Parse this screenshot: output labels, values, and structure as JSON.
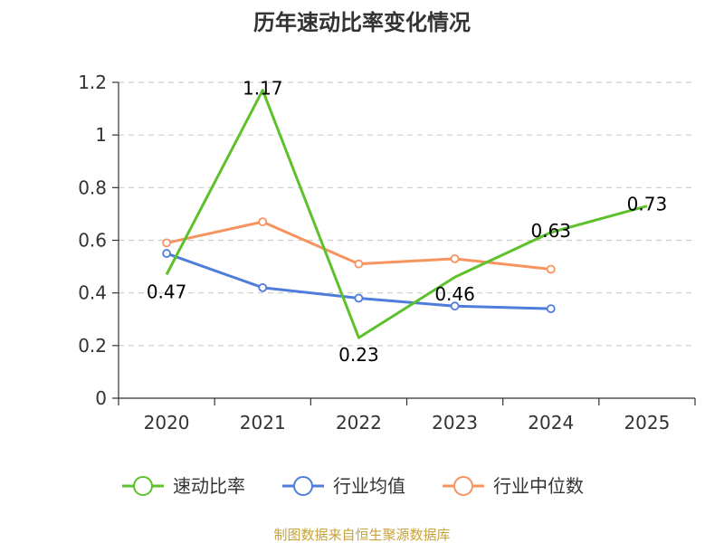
{
  "chart_data": {
    "type": "line",
    "title": "历年速动比率变化情况",
    "categories": [
      "2020",
      "2021",
      "2022",
      "2023",
      "2024",
      "2025"
    ],
    "ylim": [
      0,
      1.2
    ],
    "yticks": [
      "0",
      "0.2",
      "0.4",
      "0.6",
      "0.8",
      "1",
      "1.2"
    ],
    "grid": true,
    "legend_position": "bottom",
    "series": [
      {
        "name": "速动比率",
        "color": "#5cc12b",
        "values": [
          0.47,
          1.17,
          0.23,
          0.46,
          0.63,
          0.73
        ],
        "labels": [
          "0.47",
          "1.17",
          "0.23",
          "0.46",
          "0.63",
          "0.73"
        ]
      },
      {
        "name": "行业均值",
        "color": "#4f7ddb",
        "values": [
          0.55,
          0.42,
          0.38,
          0.35,
          0.34,
          null
        ]
      },
      {
        "name": "行业中位数",
        "color": "#f7935e",
        "values": [
          0.59,
          0.67,
          0.51,
          0.53,
          0.49,
          null
        ]
      }
    ]
  },
  "footer": {
    "source": "制图数据来自恒生聚源数据库"
  }
}
